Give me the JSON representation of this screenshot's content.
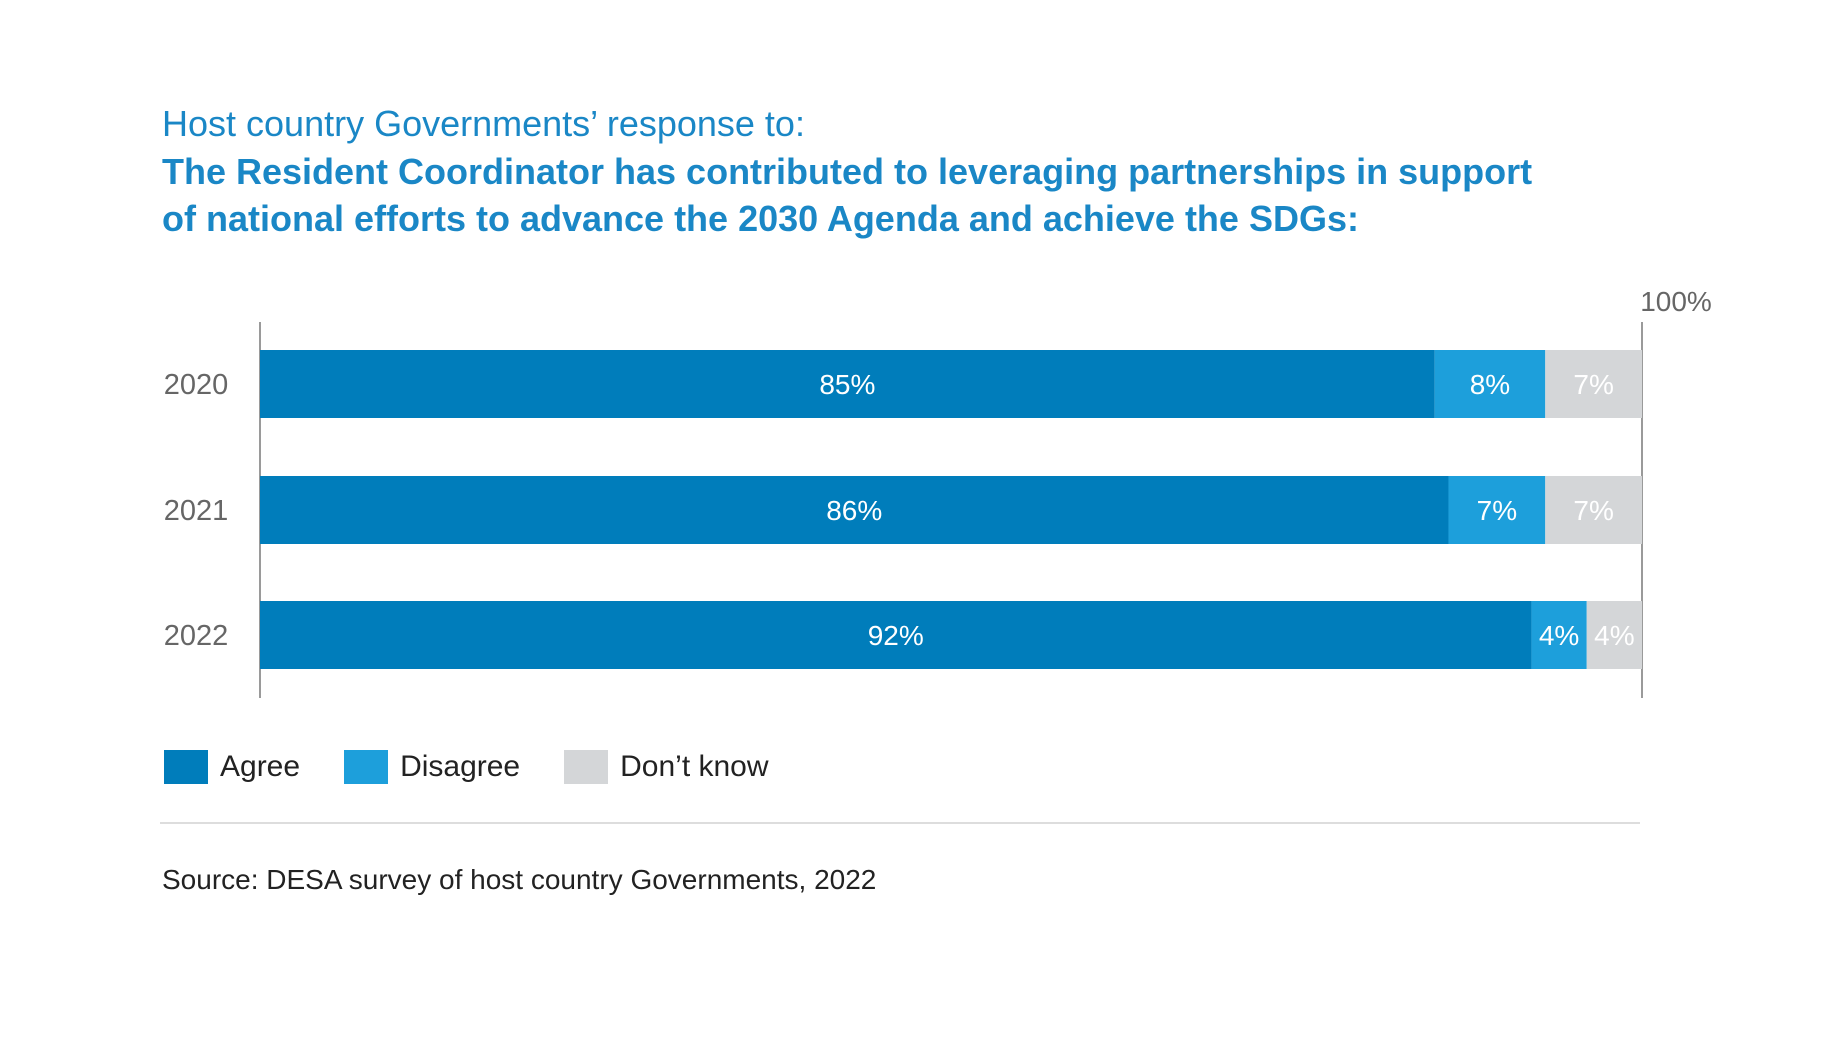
{
  "colors": {
    "agree": "#007dbb",
    "disagree": "#1d9fdb",
    "dont_know": "#d4d6d8",
    "title": "#1a87c6",
    "axis_text": "#666666"
  },
  "chart_data": {
    "type": "bar",
    "orientation": "horizontal",
    "stacked": true,
    "subtitle": "Host country Governments’ response to:",
    "title": "The Resident Coordinator has contributed to leveraging partnerships in support of national efforts to advance the 2030 Agenda and achieve the SDGs:",
    "title_lines": [
      "The Resident Coordinator has contributed to leveraging partnerships in support",
      "of national efforts to advance the 2030 Agenda and achieve the SDGs:"
    ],
    "categories": [
      "2020",
      "2021",
      "2022"
    ],
    "series": [
      {
        "name": "Agree",
        "values": [
          85,
          86,
          92
        ],
        "labels": [
          "85%",
          "86%",
          "92%"
        ]
      },
      {
        "name": "Disagree",
        "values": [
          8,
          7,
          4
        ],
        "labels": [
          "8%",
          "7%",
          "4%"
        ]
      },
      {
        "name": "Don’t know",
        "values": [
          7,
          7,
          4
        ],
        "labels": [
          "7%",
          "7%",
          "4%"
        ]
      }
    ],
    "xlim": [
      0,
      100
    ],
    "max_label": "100%",
    "legend": "bottom-left",
    "source": "Source: DESA survey of host country Governments, 2022"
  }
}
